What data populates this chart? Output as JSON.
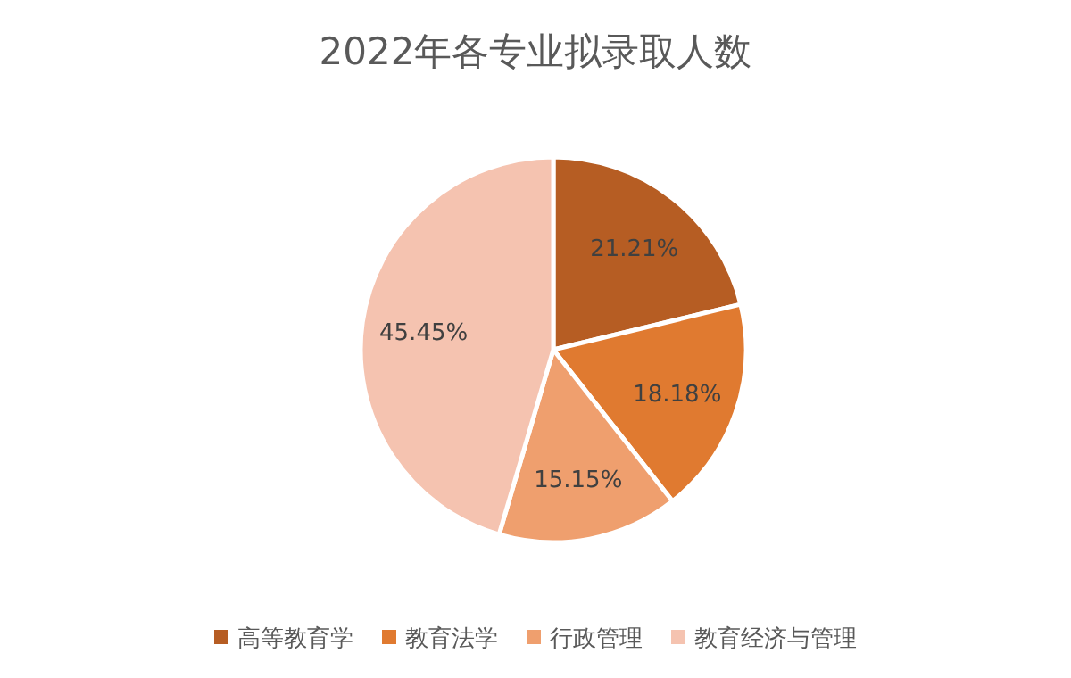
{
  "chart_data": {
    "type": "pie",
    "title": "2022年各专业拟录取人数",
    "categories": [
      "高等教育学",
      "教育法学",
      "行政管理",
      "教育经济与管理"
    ],
    "values": [
      21.21,
      18.18,
      15.15,
      45.45
    ],
    "value_labels": [
      "21.21%",
      "18.18%",
      "15.15%",
      "45.45%"
    ],
    "colors": [
      "#b65d23",
      "#e07a30",
      "#ef9f6e",
      "#f5c3b0"
    ],
    "legend": "bottom"
  }
}
